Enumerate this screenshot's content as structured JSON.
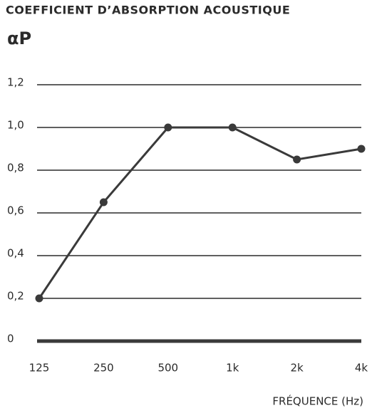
{
  "chart_data": {
    "type": "line",
    "title": "COEFFICIENT D’ABSORPTION ACOUSTIQUE",
    "y_label": "αP",
    "x_label": "FRÉQUENCE (Hz)",
    "categories": [
      "125",
      "250",
      "500",
      "1k",
      "2k",
      "4k"
    ],
    "series": [
      {
        "name": "αP",
        "color": "#3a3a3a",
        "values": [
          0.2,
          0.65,
          1.0,
          1.0,
          0.85,
          0.9
        ]
      }
    ],
    "ylim": [
      0,
      1.2
    ],
    "yticks": [
      0,
      {
        "value": 0.2,
        "label": "0,2"
      },
      {
        "value": 0.4,
        "label": "0,4"
      },
      {
        "value": 0.6,
        "label": "0,6"
      },
      {
        "value": 0.8,
        "label": "0,8"
      },
      {
        "value": 1.0,
        "label": "1,0"
      },
      {
        "value": 1.2,
        "label": "1,2"
      }
    ],
    "grid": true
  }
}
